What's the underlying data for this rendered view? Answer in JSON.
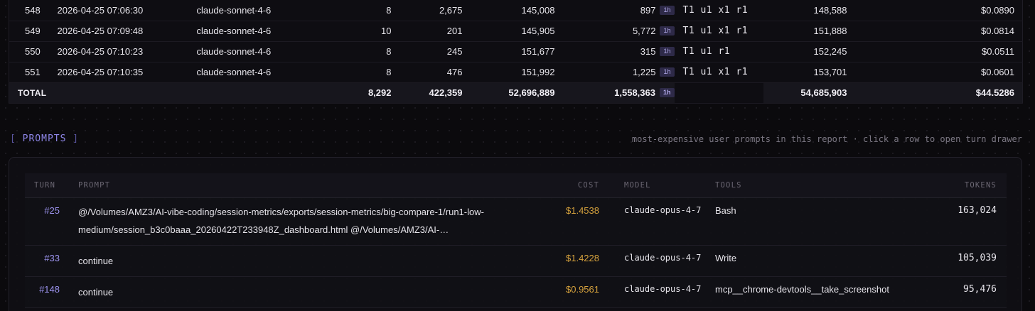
{
  "turns_table": {
    "rows": [
      {
        "idx": "548",
        "timestamp": "2026-04-25 07:06:30",
        "model": "claude-sonnet-4-6",
        "calls": "8",
        "output": "2,675",
        "cache_read": "145,008",
        "cache_write": "897",
        "cache_badge": "1h",
        "flags": "T1 u1 x1 r1",
        "total": "148,588",
        "cost": "$0.0890"
      },
      {
        "idx": "549",
        "timestamp": "2026-04-25 07:09:48",
        "model": "claude-sonnet-4-6",
        "calls": "10",
        "output": "201",
        "cache_read": "145,905",
        "cache_write": "5,772",
        "cache_badge": "1h",
        "flags": "T1 u1 x1 r1",
        "total": "151,888",
        "cost": "$0.0814"
      },
      {
        "idx": "550",
        "timestamp": "2026-04-25 07:10:23",
        "model": "claude-sonnet-4-6",
        "calls": "8",
        "output": "245",
        "cache_read": "151,677",
        "cache_write": "315",
        "cache_badge": "1h",
        "flags": "T1 u1 r1",
        "total": "152,245",
        "cost": "$0.0511"
      },
      {
        "idx": "551",
        "timestamp": "2026-04-25 07:10:35",
        "model": "claude-sonnet-4-6",
        "calls": "8",
        "output": "476",
        "cache_read": "151,992",
        "cache_write": "1,225",
        "cache_badge": "1h",
        "flags": "T1 u1 x1 r1",
        "total": "153,701",
        "cost": "$0.0601"
      }
    ],
    "total": {
      "label": "TOTAL",
      "calls": "8,292",
      "output": "422,359",
      "cache_read": "52,696,889",
      "cache_write": "1,558,363",
      "cache_badge": "1h",
      "total": "54,685,903",
      "cost": "$44.5286"
    }
  },
  "prompts": {
    "header_open": "[",
    "header_label": "PROMPTS",
    "header_close": "]",
    "subtitle": "most-expensive user prompts in this report · click a row to open turn drawer",
    "columns": {
      "turn": "TURN",
      "prompt": "PROMPT",
      "cost": "COST",
      "model": "MODEL",
      "tools": "TOOLS",
      "tokens": "TOKENS"
    },
    "rows": [
      {
        "turn": "#25",
        "prompt": "@/Volumes/AMZ3/AI-vibe-coding/session-metrics/exports/session-metrics/big-compare-1/run1-low-medium/session_b3c0baaa_20260422T233948Z_dashboard.html @/Volumes/AMZ3/AI-…",
        "cost": "$1.4538",
        "model": "claude-opus-4-7",
        "tools": "Bash",
        "tokens": "163,024"
      },
      {
        "turn": "#33",
        "prompt": "continue",
        "cost": "$1.4228",
        "model": "claude-opus-4-7",
        "tools": "Write",
        "tokens": "105,039"
      },
      {
        "turn": "#148",
        "prompt": "continue",
        "cost": "$0.9561",
        "model": "claude-opus-4-7",
        "tools": "mcp__chrome-devtools__take_screenshot",
        "tokens": "95,476"
      }
    ]
  },
  "colors": {
    "accent": "#9d94f0",
    "cost": "#d6a23d",
    "badge_bg": "#2e2a48",
    "background": "#0b0a0d"
  }
}
